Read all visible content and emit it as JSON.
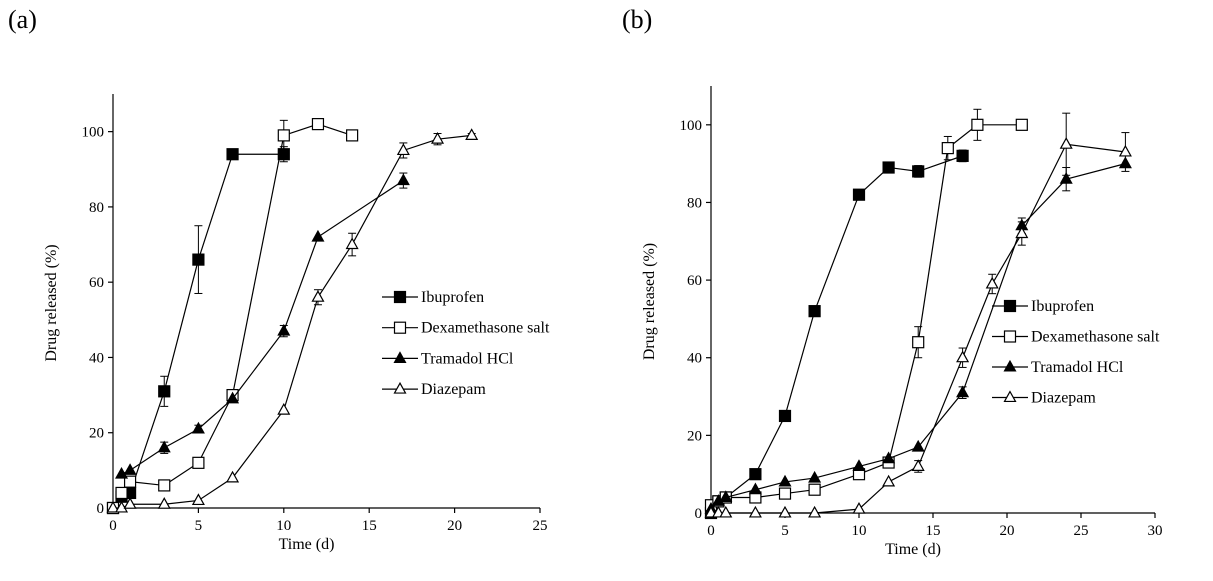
{
  "chart_data": [
    {
      "panel": "(a)",
      "type": "line",
      "xlabel": "Time (d)",
      "ylabel": "Drug released (%)",
      "xlim": [
        0,
        25
      ],
      "ylim": [
        0,
        110
      ],
      "xticks": [
        0,
        5,
        10,
        15,
        20,
        25
      ],
      "yticks": [
        0,
        20,
        40,
        60,
        80,
        100
      ],
      "grid": false,
      "legend_position": "right",
      "series": [
        {
          "name": "Ibuprofen",
          "marker": "square-filled",
          "x": [
            0,
            0.5,
            1,
            3,
            5,
            7,
            10
          ],
          "y": [
            0,
            3,
            4,
            31,
            66,
            94,
            94
          ],
          "err": [
            0,
            0,
            0,
            4,
            9,
            0,
            2
          ]
        },
        {
          "name": "Dexamethasone salt",
          "marker": "square-open",
          "x": [
            0,
            0.5,
            1,
            3,
            5,
            7,
            10,
            12,
            14
          ],
          "y": [
            0,
            4,
            7,
            6,
            12,
            30,
            99,
            102,
            99
          ],
          "err": [
            0,
            0,
            0,
            0,
            0,
            0,
            4,
            0,
            0
          ]
        },
        {
          "name": "Tramadol HCl",
          "marker": "triangle-filled",
          "x": [
            0.5,
            1,
            3,
            5,
            7,
            10,
            12,
            17
          ],
          "y": [
            9,
            10,
            16,
            21,
            29,
            47,
            72,
            87
          ],
          "err": [
            0,
            0,
            1.5,
            1,
            0,
            1.5,
            0,
            2
          ]
        },
        {
          "name": "Diazepam",
          "marker": "triangle-open",
          "x": [
            0,
            0.5,
            1,
            3,
            5,
            7,
            10,
            12,
            14,
            17,
            19,
            21
          ],
          "y": [
            0,
            0,
            1,
            1,
            2,
            8,
            26,
            56,
            70,
            95,
            98,
            99
          ],
          "err": [
            0,
            0,
            0,
            0,
            0,
            0,
            0,
            2,
            3,
            2,
            1.5,
            0.5
          ]
        }
      ]
    },
    {
      "panel": "(b)",
      "type": "line",
      "xlabel": "Time (d)",
      "ylabel": "Drug released (%)",
      "xlim": [
        0,
        30
      ],
      "ylim": [
        0,
        110
      ],
      "xticks": [
        0,
        5,
        10,
        15,
        20,
        25,
        30
      ],
      "yticks": [
        0,
        20,
        40,
        60,
        80,
        100
      ],
      "grid": false,
      "legend_position": "right",
      "series": [
        {
          "name": "Ibuprofen",
          "marker": "square-filled",
          "x": [
            0,
            0.5,
            1,
            3,
            5,
            7,
            10,
            12,
            14,
            17
          ],
          "y": [
            0,
            3,
            4,
            10,
            25,
            52,
            82,
            89,
            88,
            92
          ],
          "err": [
            0,
            0,
            0,
            0,
            0,
            0,
            0,
            0,
            1.5,
            1.5
          ]
        },
        {
          "name": "Dexamethasone salt",
          "marker": "square-open",
          "x": [
            0,
            0.5,
            1,
            3,
            5,
            7,
            10,
            12,
            14,
            16,
            18,
            21
          ],
          "y": [
            2,
            3,
            4,
            4,
            5,
            6,
            10,
            13,
            44,
            94,
            100,
            100
          ],
          "err": [
            0,
            0,
            0,
            0,
            0,
            0,
            0,
            0,
            4,
            3,
            4,
            0
          ]
        },
        {
          "name": "Tramadol HCl",
          "marker": "triangle-filled",
          "x": [
            0,
            0.5,
            1,
            3,
            5,
            7,
            10,
            12,
            14,
            17,
            21,
            24,
            28
          ],
          "y": [
            1,
            3,
            4,
            6,
            8,
            9,
            12,
            14,
            17,
            31,
            74,
            86,
            90
          ],
          "err": [
            0,
            0,
            0,
            0,
            0,
            0,
            0,
            0,
            0,
            1.5,
            2,
            3,
            0
          ]
        },
        {
          "name": "Diazepam",
          "marker": "triangle-open",
          "x": [
            0,
            0.5,
            1,
            3,
            5,
            7,
            10,
            12,
            14,
            17,
            19,
            21,
            24,
            28
          ],
          "y": [
            0,
            0,
            0,
            0,
            0,
            0,
            1,
            8,
            12,
            40,
            59,
            72,
            95,
            93
          ],
          "err": [
            0,
            0,
            0,
            0,
            0,
            0,
            0,
            0,
            1.5,
            2.5,
            2.5,
            3,
            8,
            5
          ]
        }
      ]
    }
  ]
}
